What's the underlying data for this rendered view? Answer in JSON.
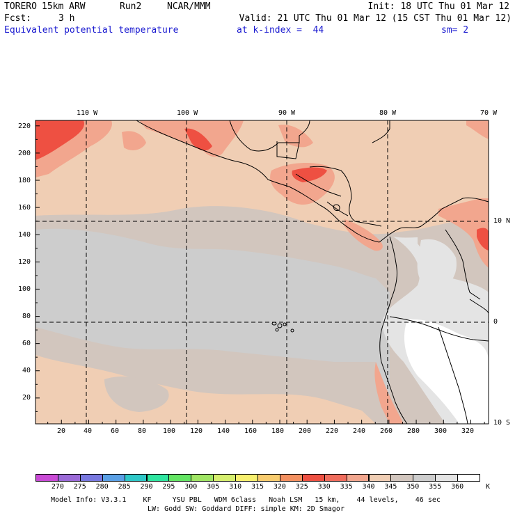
{
  "header": {
    "model": "TORERO",
    "resolution": "15km ARW",
    "run": "Run2",
    "org": "NCAR/MMM",
    "init": "Init: 18 UTC Thu 01 Mar 12",
    "fcst_label": "Fcst:",
    "fcst_value": "3 h",
    "valid": "Valid: 21 UTC Thu 01 Mar 12 (15 CST Thu 01 Mar 12)",
    "field": "Equivalent potential temperature",
    "level": "at k-index =  44",
    "smoothing": "sm= 2"
  },
  "map": {
    "lon_labels": [
      "110 W",
      "100 W",
      "90 W",
      "80 W",
      "70 W"
    ],
    "lat_labels": [
      "10 N",
      "0",
      "10 S"
    ],
    "y_ticks": [
      "220",
      "200",
      "180",
      "160",
      "140",
      "120",
      "100",
      "80",
      "60",
      "40",
      "20"
    ],
    "x_ticks": [
      "20",
      "40",
      "60",
      "80",
      "100",
      "120",
      "140",
      "160",
      "180",
      "200",
      "220",
      "240",
      "260",
      "280",
      "300",
      "320"
    ],
    "grid_x_range": [
      1,
      333
    ],
    "grid_y_range": [
      1,
      224
    ],
    "lon_lines_at_gridx": [
      37,
      111,
      185,
      260
    ],
    "lat_lines_at_gridy": [
      150,
      76
    ]
  },
  "colorbar": {
    "unit": "K",
    "labels": [
      "270",
      "275",
      "280",
      "285",
      "290",
      "295",
      "300",
      "305",
      "310",
      "315",
      "320",
      "325",
      "330",
      "335",
      "340",
      "345",
      "350",
      "355",
      "360"
    ],
    "colors": [
      "#c94ad6",
      "#9b6ad8",
      "#7878e0",
      "#5aa0e6",
      "#2ec8c8",
      "#2ee6a0",
      "#64e664",
      "#a0e664",
      "#d6ef6e",
      "#f7f06e",
      "#f8cc6e",
      "#f49060",
      "#ee5042",
      "#f06c5c",
      "#f2a68e",
      "#f0ceb4",
      "#d2c6be",
      "#cdcdcd",
      "#e4e4e4",
      "#ffffff"
    ],
    "field_colors": {
      "c345": "#f0ceb4",
      "c350": "#d2c6be",
      "c355": "#cdcdcd",
      "c360": "#e4e4e4",
      "c340": "#f2a68e",
      "c330": "#ee5042"
    }
  },
  "footer": {
    "line1": "Model Info: V3.3.1    KF     YSU PBL   WDM 6class   Noah LSM   15 km,    44 levels,    46 sec",
    "line2": "LW: Godd SW: Goddard DIFF: simple KM: 2D Smagor"
  }
}
